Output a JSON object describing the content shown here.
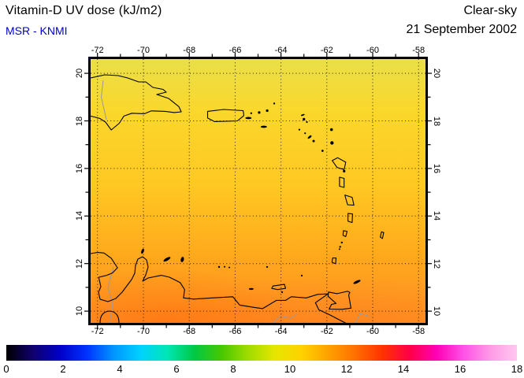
{
  "header": {
    "title": "Vitamin-D UV dose (kJ/m2)",
    "source": "MSR - KNMI",
    "source_color": "#0000c8",
    "condition": "Clear-sky",
    "date": "21 September 2002"
  },
  "map": {
    "lon_ticks": [
      "-72",
      "-70",
      "-68",
      "-66",
      "-64",
      "-62",
      "-60",
      "-58"
    ],
    "lat_ticks": [
      "20",
      "18",
      "16",
      "14",
      "12",
      "10"
    ],
    "field_gradient": {
      "top": "#e9df48",
      "upper": "#fbd72b",
      "middle": "#ffc822",
      "lower": "#ffa81c",
      "bottom": "#ff9026",
      "hotspot_southwest": "rgba(255,96,0,0.45)",
      "hotspot_southeast": "rgba(255,110,16,0.38)"
    },
    "coastline_color": "#000000",
    "country_border_color": "#999999",
    "grid_color": "#000000"
  },
  "colorbar": {
    "tick_labels": [
      "0",
      "2",
      "4",
      "6",
      "8",
      "10",
      "12",
      "14",
      "16",
      "18"
    ],
    "min": 0,
    "max": 18,
    "stops": [
      "#000000",
      "#10006e",
      "#0000c8",
      "#0032ff",
      "#0096ff",
      "#00d2ff",
      "#00e6b4",
      "#00c846",
      "#46c800",
      "#a0dc00",
      "#e6e600",
      "#ffd200",
      "#ffa000",
      "#ff6e00",
      "#ff3200",
      "#ff0046",
      "#ff00b4",
      "#ff50e6",
      "#ff9ae6",
      "#ffc8f0"
    ]
  },
  "chart_data": {
    "type": "heatmap",
    "title": "Vitamin-D UV dose (kJ/m2)",
    "subtitle": "MSR - KNMI, Clear-sky, 21 September 2002",
    "units": "kJ/m2",
    "lon_range": [
      -72.3,
      -57.7
    ],
    "lat_range": [
      9.5,
      20.6
    ],
    "scale_range": [
      0,
      18
    ],
    "legend_position": "bottom",
    "grid": "dashed, every 2 degrees",
    "approx_dose_by_latitude": [
      {
        "lat": 20,
        "dose": 10.5
      },
      {
        "lat": 18,
        "dose": 11.0
      },
      {
        "lat": 16,
        "dose": 11.5
      },
      {
        "lat": 14,
        "dose": 12.0
      },
      {
        "lat": 12,
        "dose": 12.4
      },
      {
        "lat": 10,
        "dose": 12.9
      }
    ]
  }
}
